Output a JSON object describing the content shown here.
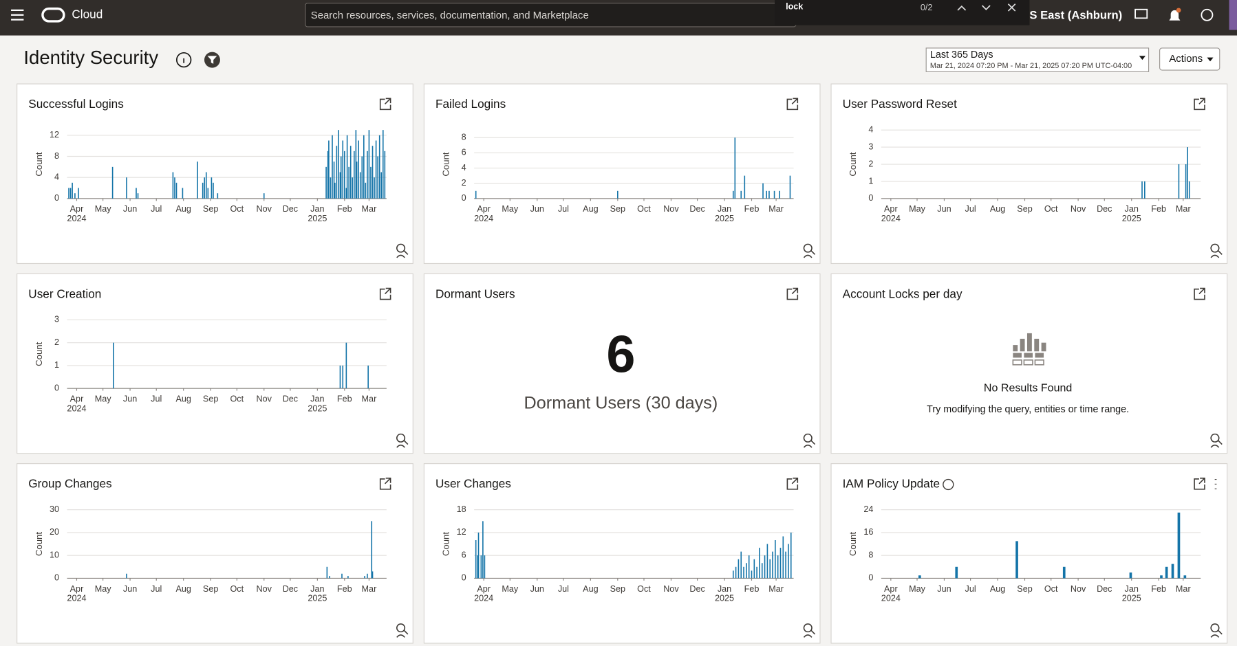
{
  "nav": {
    "brand": "Cloud",
    "search_placeholder": "Search resources, services, documentation, and Marketplace",
    "find_query": "lock",
    "find_count": "0/2",
    "region": "S East (Ashburn)"
  },
  "header": {
    "title": "Identity Security",
    "date_range": "Last 365 Days",
    "date_detail": "Mar 21, 2024 07:20 PM - Mar 21, 2025 07:20 PM UTC-04:00",
    "actions": "Actions"
  },
  "time_axis": {
    "xlim": [
      0,
      365
    ],
    "xticks": [
      {
        "value": 11,
        "label": "Apr"
      },
      {
        "value": 41,
        "label": "May"
      },
      {
        "value": 72,
        "label": "Jun"
      },
      {
        "value": 102,
        "label": "Jul"
      },
      {
        "value": 133,
        "label": "Aug"
      },
      {
        "value": 164,
        "label": "Sep"
      },
      {
        "value": 194,
        "label": "Oct"
      },
      {
        "value": 225,
        "label": "Nov"
      },
      {
        "value": 255,
        "label": "Dec"
      },
      {
        "value": 286,
        "label": "Jan"
      },
      {
        "value": 317,
        "label": "Feb"
      },
      {
        "value": 345,
        "label": "Mar"
      }
    ],
    "year_ticks": [
      {
        "value": 11,
        "label": "2024"
      },
      {
        "value": 286,
        "label": "2025"
      }
    ]
  },
  "chart_data": [
    {
      "type": "bar",
      "title": "Successful Logins",
      "y_label": "Count",
      "color": "#1474a8",
      "ylim": [
        0,
        13
      ],
      "yticks": [
        0,
        4,
        8,
        12
      ],
      "grid": true,
      "x": [
        2,
        4,
        6,
        9,
        13,
        52,
        68,
        79,
        81,
        121,
        123,
        125,
        132,
        149,
        155,
        157,
        159,
        161,
        165,
        167,
        172,
        225,
        296,
        298,
        299,
        301,
        303,
        305,
        306,
        308,
        310,
        312,
        313,
        315,
        317,
        319,
        320,
        322,
        324,
        326,
        328,
        330,
        331,
        333,
        335,
        337,
        339,
        341,
        343,
        345,
        347,
        349,
        351,
        353,
        355,
        357,
        359,
        361,
        363
      ],
      "values": [
        2,
        2,
        3,
        1,
        2,
        6,
        4,
        2,
        1,
        5,
        4,
        3,
        2,
        7,
        3,
        4,
        5,
        2,
        4,
        3,
        1,
        1,
        6,
        9,
        11,
        4,
        12,
        7,
        3,
        10,
        13,
        5,
        8,
        11,
        9,
        2,
        12,
        6,
        10,
        4,
        9,
        13,
        7,
        11,
        5,
        8,
        12,
        3,
        9,
        13,
        6,
        10,
        4,
        11,
        8,
        12,
        5,
        13,
        9
      ]
    },
    {
      "type": "bar",
      "title": "Failed Logins",
      "y_label": "Count",
      "color": "#1474a8",
      "ylim": [
        0,
        9
      ],
      "yticks": [
        0,
        2,
        4,
        6,
        8
      ],
      "grid": true,
      "x": [
        2,
        164,
        296,
        298,
        305,
        309,
        330,
        334,
        337,
        343,
        349,
        361
      ],
      "values": [
        1,
        1,
        1,
        8,
        1,
        3,
        2,
        1,
        1,
        1,
        1,
        3
      ]
    },
    {
      "type": "bar",
      "title": "User Password Reset",
      "y_label": "Count",
      "color": "#1474a8",
      "ylim": [
        0,
        4
      ],
      "yticks": [
        0,
        1,
        2,
        3,
        4
      ],
      "grid": true,
      "x": [
        298,
        301,
        340,
        348,
        350,
        352
      ],
      "values": [
        1,
        1,
        2,
        2,
        3,
        1
      ]
    },
    {
      "type": "bar",
      "title": "User Creation",
      "y_label": "Count",
      "color": "#1474a8",
      "ylim": [
        0,
        3
      ],
      "yticks": [
        0,
        1,
        2,
        3
      ],
      "grid": true,
      "x": [
        53,
        312,
        315,
        319,
        344
      ],
      "values": [
        2,
        1,
        1,
        2,
        1
      ]
    },
    {
      "type": "bar",
      "title": "Group Changes",
      "y_label": "Count",
      "color": "#1474a8",
      "ylim": [
        0,
        30
      ],
      "yticks": [
        0,
        10,
        20,
        30
      ],
      "grid": true,
      "x": [
        68,
        297,
        300,
        314,
        321,
        340,
        343,
        348,
        349
      ],
      "values": [
        2,
        5,
        1,
        2,
        1,
        1,
        2,
        25,
        3
      ]
    },
    {
      "type": "bar",
      "title": "User Changes",
      "y_label": "Count",
      "color": "#1474a8",
      "ylim": [
        0,
        18
      ],
      "yticks": [
        0,
        6,
        12,
        18
      ],
      "grid": true,
      "x": [
        2,
        4,
        5,
        8,
        10,
        12,
        296,
        299,
        302,
        305,
        308,
        311,
        314,
        317,
        320,
        323,
        326,
        329,
        332,
        335,
        338,
        341,
        344,
        347,
        350,
        353,
        356,
        359,
        362
      ],
      "values": [
        10,
        6,
        12,
        6,
        15,
        6,
        2,
        3,
        5,
        7,
        3,
        4,
        6,
        2,
        5,
        3,
        8,
        4,
        6,
        9,
        5,
        7,
        10,
        6,
        8,
        11,
        7,
        9,
        12
      ]
    },
    {
      "type": "bar",
      "title": "IAM Policy Update",
      "y_label": "Count",
      "color": "#1474a8",
      "ylim": [
        0,
        24
      ],
      "yticks": [
        0,
        8,
        16,
        24
      ],
      "grid": true,
      "x": [
        44,
        86,
        155,
        209,
        285,
        320,
        326,
        333,
        340,
        347
      ],
      "values": [
        1,
        4,
        13,
        4,
        2,
        1,
        4,
        5,
        23,
        1
      ]
    }
  ],
  "widgets": {
    "dormant": {
      "title": "Dormant Users",
      "value": 6,
      "label": "Dormant Users (30 days)"
    },
    "locks": {
      "title": "Account Locks per day",
      "message": "No Results Found",
      "hint": "Try modifying the query, entities or time range."
    }
  }
}
